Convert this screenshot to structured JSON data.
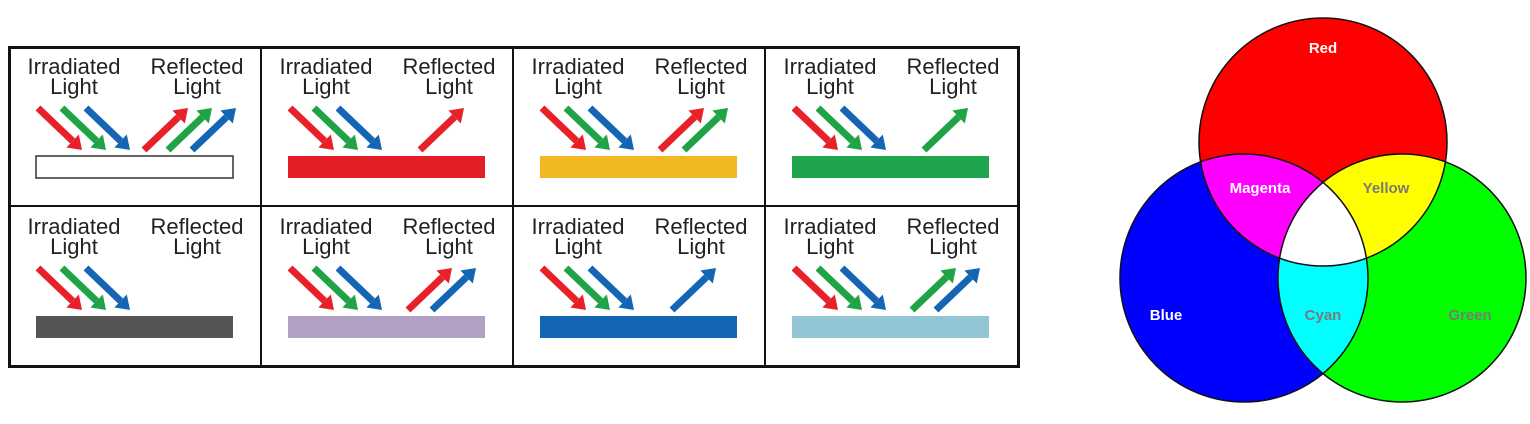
{
  "labels": {
    "irradiated": [
      "Irradiated",
      "Light"
    ],
    "reflected": [
      "Reflected",
      "Light"
    ]
  },
  "colors": {
    "red": "#e8202a",
    "green": "#1fa346",
    "blue": "#1565b5"
  },
  "panels": [
    {
      "surface": "white",
      "fill": "#ffffff",
      "stroke": "#333333",
      "reflected": [
        "red",
        "green",
        "blue"
      ]
    },
    {
      "surface": "red",
      "fill": "#e41e26",
      "stroke": "none",
      "reflected": [
        "red"
      ]
    },
    {
      "surface": "yellow",
      "fill": "#f2b824",
      "stroke": "none",
      "reflected": [
        "red",
        "green"
      ]
    },
    {
      "surface": "green",
      "fill": "#1fa54c",
      "stroke": "none",
      "reflected": [
        "green"
      ]
    },
    {
      "surface": "black",
      "fill": "#555555",
      "stroke": "none",
      "reflected": []
    },
    {
      "surface": "purple",
      "fill": "#b29fc4",
      "stroke": "none",
      "reflected": [
        "red",
        "blue"
      ]
    },
    {
      "surface": "blue",
      "fill": "#1565b5",
      "stroke": "none",
      "reflected": [
        "blue"
      ]
    },
    {
      "surface": "cyan",
      "fill": "#92c6d4",
      "stroke": "none",
      "reflected": [
        "green",
        "blue"
      ]
    }
  ],
  "venn": {
    "labels": {
      "red": "Red",
      "blue": "Blue",
      "green": "Green",
      "magenta": "Magenta",
      "yellow": "Yellow",
      "cyan": "Cyan"
    },
    "fills": {
      "red": "#ff0000",
      "green": "#00ff00",
      "blue": "#0000ff",
      "magenta": "#ff00ff",
      "yellow": "#ffff00",
      "cyan": "#00ffff",
      "white": "#ffffff"
    },
    "text_colors": {
      "light": "#ffffff",
      "dark": "#7a7a7a"
    }
  }
}
